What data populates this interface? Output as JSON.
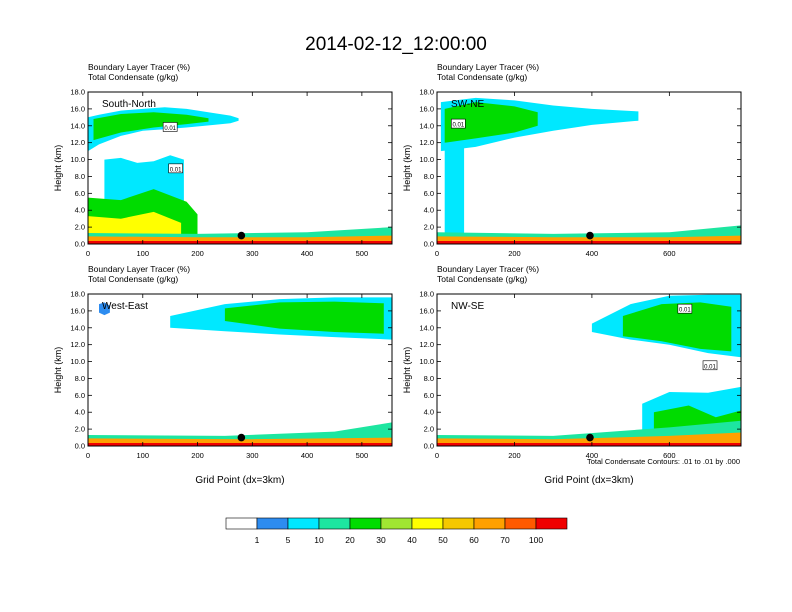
{
  "figure": {
    "title": "2014-02-12_12:00:00",
    "footnote": "Total Condensate Contours: .01 to .01 by .000"
  },
  "colors": {
    "levels": [
      "#ffffff",
      "#2d8cf0",
      "#00e8ff",
      "#1de6a0",
      "#00dc00",
      "#a0e632",
      "#ffff00",
      "#f5c800",
      "#ffa000",
      "#ff5a00",
      "#f00000"
    ],
    "contour": "#000000"
  },
  "colorbar": {
    "labels": [
      "1",
      "5",
      "10",
      "20",
      "30",
      "40",
      "50",
      "60",
      "70",
      "100"
    ]
  },
  "chart_data": [
    {
      "type": "heatmap",
      "name": "South-North",
      "label": "South-North",
      "header": [
        "Boundary Layer Tracer    (%)",
        "Total Condensate    (g/kg)"
      ],
      "ylabel": "Height (km)",
      "xlabel": "",
      "xlim": [
        0,
        555
      ],
      "ylim": [
        0,
        18
      ],
      "xticks": [
        0,
        100,
        200,
        300,
        400,
        500
      ],
      "yticks": [
        "0.0",
        "2.0",
        "4.0",
        "6.0",
        "8.0",
        "10.0",
        "12.0",
        "14.0",
        "16.0",
        "18.0"
      ],
      "marker": {
        "x": 280,
        "y": 1.0
      },
      "contour_labels": [
        {
          "text": "0.01",
          "x": 150,
          "y": 13.8
        },
        {
          "text": "0.01",
          "x": 160,
          "y": 8.9
        }
      ],
      "features": [
        {
          "level": 2,
          "xs": [
            0,
            20,
            60,
            100,
            140,
            180,
            230,
            260,
            275
          ],
          "top": [
            15.0,
            15.3,
            15.8,
            16.0,
            16.2,
            16.0,
            15.5,
            15.2,
            14.9
          ],
          "bottom": [
            11.0,
            11.8,
            12.8,
            13.4,
            13.6,
            13.8,
            14.1,
            14.3,
            14.6
          ]
        },
        {
          "level": 4,
          "xs": [
            10,
            60,
            120,
            180,
            220
          ],
          "top": [
            14.8,
            15.4,
            15.6,
            15.3,
            14.9
          ],
          "bottom": [
            12.3,
            13.2,
            13.8,
            14.2,
            14.5
          ]
        },
        {
          "level": 2,
          "xs": [
            30,
            60,
            90,
            120,
            150,
            175
          ],
          "top": [
            10.0,
            10.2,
            9.6,
            9.8,
            10.5,
            10.0
          ],
          "bottom": [
            0,
            0,
            0,
            0,
            0,
            0
          ]
        },
        {
          "level": 4,
          "xs": [
            0,
            60,
            120,
            180,
            200
          ],
          "top": [
            5.5,
            5.2,
            6.5,
            5.0,
            3.5
          ],
          "bottom": [
            0,
            0,
            0,
            0,
            0
          ]
        },
        {
          "level": 6,
          "xs": [
            0,
            60,
            120,
            170
          ],
          "top": [
            3.3,
            3.0,
            3.8,
            2.5
          ],
          "bottom": [
            0,
            0,
            0,
            0
          ]
        },
        {
          "level": 3,
          "xs": [
            0,
            200,
            400,
            555
          ],
          "top": [
            1.3,
            1.2,
            1.4,
            2.0
          ],
          "bottom": [
            0,
            0,
            0,
            0
          ]
        },
        {
          "level": 8,
          "xs": [
            0,
            200,
            400,
            555
          ],
          "top": [
            0.9,
            0.8,
            0.8,
            1.0
          ],
          "bottom": [
            0,
            0,
            0,
            0
          ]
        },
        {
          "level": 10,
          "xs": [
            0,
            555
          ],
          "top": [
            0.35,
            0.35
          ],
          "bottom": [
            0,
            0
          ]
        }
      ]
    },
    {
      "type": "heatmap",
      "name": "SW-NE",
      "label": "SW-NE",
      "header": [
        "Boundary Layer Tracer    (%)",
        "Total Condensate    (g/kg)"
      ],
      "ylabel": "Height (km)",
      "xlabel": "",
      "xlim": [
        0,
        785
      ],
      "ylim": [
        0,
        18
      ],
      "xticks": [
        0,
        200,
        400,
        600
      ],
      "yticks": [
        "0.0",
        "2.0",
        "4.0",
        "6.0",
        "8.0",
        "10.0",
        "12.0",
        "14.0",
        "16.0",
        "18.0"
      ],
      "marker": {
        "x": 395,
        "y": 1.0
      },
      "contour_labels": [
        {
          "text": "0.01",
          "x": 55,
          "y": 14.2
        }
      ],
      "features": [
        {
          "level": 2,
          "xs": [
            10,
            100,
            200,
            300,
            400,
            520
          ],
          "top": [
            16.8,
            17.3,
            17.0,
            16.4,
            16.0,
            15.7
          ],
          "bottom": [
            11.0,
            11.5,
            12.6,
            13.4,
            14.1,
            14.6
          ]
        },
        {
          "level": 4,
          "xs": [
            20,
            100,
            200,
            260
          ],
          "top": [
            16.0,
            16.8,
            16.3,
            15.6
          ],
          "bottom": [
            12.0,
            12.5,
            13.2,
            14.0
          ]
        },
        {
          "level": 2,
          "xs": [
            20,
            40,
            70
          ],
          "top": [
            12.0,
            12.0,
            11.5
          ],
          "bottom": [
            0,
            0,
            0
          ]
        },
        {
          "level": 3,
          "xs": [
            0,
            300,
            600,
            785
          ],
          "top": [
            1.4,
            1.2,
            1.4,
            2.2
          ],
          "bottom": [
            0,
            0,
            0,
            0
          ]
        },
        {
          "level": 8,
          "xs": [
            0,
            300,
            600,
            785
          ],
          "top": [
            0.9,
            0.8,
            0.8,
            1.0
          ],
          "bottom": [
            0,
            0,
            0,
            0
          ]
        },
        {
          "level": 10,
          "xs": [
            0,
            785
          ],
          "top": [
            0.35,
            0.35
          ],
          "bottom": [
            0,
            0
          ]
        }
      ]
    },
    {
      "type": "heatmap",
      "name": "West-East",
      "label": "West-East",
      "header": [
        "Boundary Layer Tracer    (%)",
        "Total Condensate    (g/kg)"
      ],
      "ylabel": "Height (km)",
      "xlabel": "Grid Point (dx=3km)",
      "xlim": [
        0,
        555
      ],
      "ylim": [
        0,
        18
      ],
      "xticks": [
        0,
        100,
        200,
        300,
        400,
        500
      ],
      "yticks": [
        "0.0",
        "2.0",
        "4.0",
        "6.0",
        "8.0",
        "10.0",
        "12.0",
        "14.0",
        "16.0",
        "18.0"
      ],
      "marker": {
        "x": 280,
        "y": 1.0
      },
      "contour_labels": [],
      "features": [
        {
          "level": 1,
          "xs": [
            20,
            30,
            40
          ],
          "top": [
            16.8,
            17.0,
            16.6
          ],
          "bottom": [
            15.8,
            15.5,
            15.8
          ]
        },
        {
          "level": 2,
          "xs": [
            150,
            250,
            350,
            450,
            555
          ],
          "top": [
            15.4,
            16.8,
            17.4,
            17.6,
            17.6
          ],
          "bottom": [
            14.0,
            13.6,
            13.2,
            12.9,
            12.6
          ]
        },
        {
          "level": 4,
          "xs": [
            250,
            350,
            450,
            540
          ],
          "top": [
            16.3,
            17.0,
            17.1,
            16.9
          ],
          "bottom": [
            14.8,
            13.9,
            13.5,
            13.3
          ]
        },
        {
          "level": 3,
          "xs": [
            0,
            250,
            450,
            555
          ],
          "top": [
            1.3,
            1.2,
            1.7,
            2.8
          ],
          "bottom": [
            0,
            0,
            0,
            0
          ]
        },
        {
          "level": 8,
          "xs": [
            0,
            300,
            555
          ],
          "top": [
            0.9,
            0.8,
            1.0
          ],
          "bottom": [
            0,
            0,
            0
          ]
        },
        {
          "level": 10,
          "xs": [
            0,
            555
          ],
          "top": [
            0.35,
            0.35
          ],
          "bottom": [
            0,
            0
          ]
        }
      ]
    },
    {
      "type": "heatmap",
      "name": "NW-SE",
      "label": "NW-SE",
      "header": [
        "Boundary Layer Tracer    (%)",
        "Total Condensate    (g/kg)"
      ],
      "ylabel": "Height (km)",
      "xlabel": "Grid Point (dx=3km)",
      "xlim": [
        0,
        785
      ],
      "ylim": [
        0,
        18
      ],
      "xticks": [
        0,
        200,
        400,
        600
      ],
      "yticks": [
        "0.0",
        "2.0",
        "4.0",
        "6.0",
        "8.0",
        "10.0",
        "12.0",
        "14.0",
        "16.0",
        "18.0"
      ],
      "marker": {
        "x": 395,
        "y": 1.0
      },
      "contour_labels": [
        {
          "text": "0.01",
          "x": 640,
          "y": 16.2
        },
        {
          "text": "0.01",
          "x": 705,
          "y": 9.5
        }
      ],
      "features": [
        {
          "level": 2,
          "xs": [
            400,
            500,
            600,
            700,
            785
          ],
          "top": [
            14.5,
            16.8,
            17.8,
            17.9,
            17.9
          ],
          "bottom": [
            13.5,
            12.6,
            12.0,
            11.0,
            10.5
          ]
        },
        {
          "level": 4,
          "xs": [
            480,
            580,
            680,
            760
          ],
          "top": [
            15.4,
            16.8,
            17.0,
            16.5
          ],
          "bottom": [
            13.0,
            12.4,
            11.5,
            11.2
          ]
        },
        {
          "level": 2,
          "xs": [
            530,
            600,
            700,
            785
          ],
          "top": [
            5.0,
            6.4,
            6.3,
            7.0
          ],
          "bottom": [
            0,
            0,
            0,
            0
          ]
        },
        {
          "level": 4,
          "xs": [
            560,
            650,
            720,
            785
          ],
          "top": [
            4.0,
            4.8,
            3.4,
            4.2
          ],
          "bottom": [
            0,
            0,
            0,
            0
          ]
        },
        {
          "level": 3,
          "xs": [
            0,
            300,
            600,
            785
          ],
          "top": [
            1.3,
            1.2,
            2.2,
            3.0
          ],
          "bottom": [
            0,
            0,
            0,
            0
          ]
        },
        {
          "level": 8,
          "xs": [
            0,
            300,
            600,
            785
          ],
          "top": [
            0.9,
            0.8,
            1.2,
            1.6
          ],
          "bottom": [
            0,
            0,
            0,
            0
          ]
        },
        {
          "level": 10,
          "xs": [
            0,
            785
          ],
          "top": [
            0.35,
            0.35
          ],
          "bottom": [
            0,
            0
          ]
        }
      ]
    }
  ]
}
